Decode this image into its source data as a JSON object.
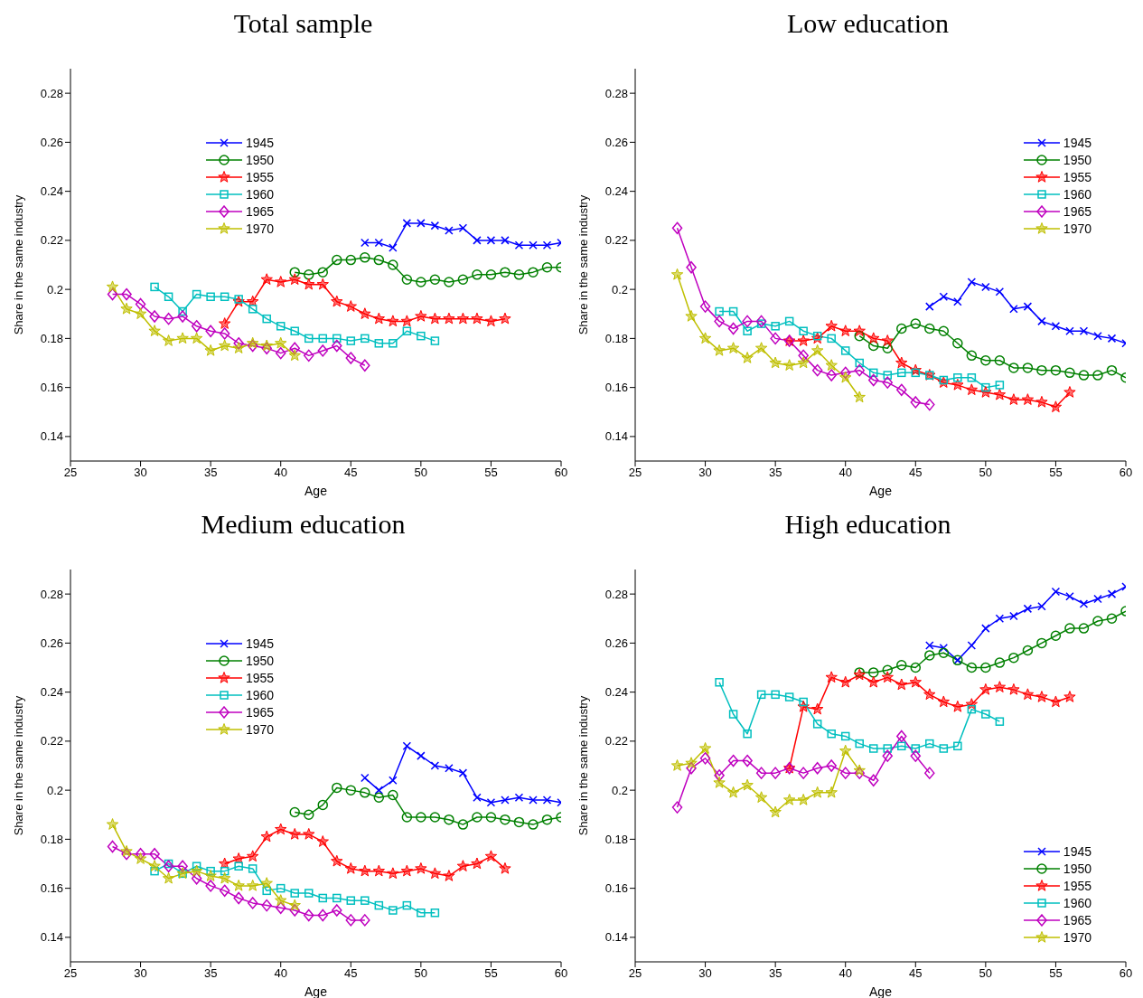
{
  "chart_data": [
    {
      "type": "line",
      "title": "Total sample",
      "xlabel": "Age",
      "ylabel": "Share in the same industry",
      "xlim": [
        25,
        60
      ],
      "xticks": [
        25,
        30,
        35,
        40,
        45,
        50,
        55,
        60
      ],
      "ylim": [
        0.13,
        0.29
      ],
      "yticks": [
        0.14,
        0.16,
        0.18,
        0.2,
        0.22,
        0.24,
        0.26,
        0.28
      ],
      "grid": false,
      "legend": "top left",
      "line_style": "solid",
      "series": [
        {
          "name": "1945",
          "color": "#0000ff",
          "marker": "cross",
          "x": [
            46,
            47,
            48,
            49,
            50,
            51,
            52,
            53,
            54,
            55,
            56,
            57,
            58,
            59,
            60
          ],
          "values": [
            0.219,
            0.219,
            0.217,
            0.227,
            0.227,
            0.226,
            0.224,
            0.225,
            0.22,
            0.22,
            0.22,
            0.218,
            0.218,
            0.218,
            0.219
          ]
        },
        {
          "name": "1950",
          "color": "#008000",
          "marker": "circle",
          "x": [
            41,
            42,
            43,
            44,
            45,
            46,
            47,
            48,
            49,
            50,
            51,
            52,
            53,
            54,
            55,
            56,
            57,
            58,
            59,
            60
          ],
          "values": [
            0.207,
            0.206,
            0.207,
            0.212,
            0.212,
            0.213,
            0.212,
            0.21,
            0.204,
            0.203,
            0.204,
            0.203,
            0.204,
            0.206,
            0.206,
            0.207,
            0.206,
            0.207,
            0.209,
            0.209
          ]
        },
        {
          "name": "1955",
          "color": "#ff0000",
          "marker": "star",
          "x": [
            36,
            37,
            38,
            39,
            40,
            41,
            42,
            43,
            44,
            45,
            46,
            47,
            48,
            49,
            50,
            51,
            52,
            53,
            54,
            55,
            56
          ],
          "values": [
            0.186,
            0.195,
            0.195,
            0.204,
            0.203,
            0.204,
            0.202,
            0.202,
            0.195,
            0.193,
            0.19,
            0.188,
            0.187,
            0.187,
            0.189,
            0.188,
            0.188,
            0.188,
            0.188,
            0.187,
            0.188
          ]
        },
        {
          "name": "1960",
          "color": "#00bfbf",
          "marker": "square",
          "x": [
            31,
            32,
            33,
            34,
            35,
            36,
            37,
            38,
            39,
            40,
            41,
            42,
            43,
            44,
            45,
            46,
            47,
            48,
            49,
            50,
            51
          ],
          "values": [
            0.201,
            0.197,
            0.191,
            0.198,
            0.197,
            0.197,
            0.196,
            0.192,
            0.188,
            0.185,
            0.183,
            0.18,
            0.18,
            0.18,
            0.179,
            0.18,
            0.178,
            0.178,
            0.183,
            0.181,
            0.179
          ]
        },
        {
          "name": "1965",
          "color": "#bf00bf",
          "marker": "diamond",
          "x": [
            28,
            29,
            30,
            31,
            32,
            33,
            34,
            35,
            36,
            37,
            38,
            39,
            40,
            41,
            42,
            43,
            44,
            45,
            46
          ],
          "values": [
            0.198,
            0.198,
            0.194,
            0.189,
            0.188,
            0.189,
            0.185,
            0.183,
            0.182,
            0.178,
            0.177,
            0.176,
            0.174,
            0.176,
            0.173,
            0.175,
            0.177,
            0.172,
            0.169
          ]
        },
        {
          "name": "1970",
          "color": "#bfbf00",
          "marker": "star",
          "x": [
            28,
            29,
            30,
            31,
            32,
            33,
            34,
            35,
            36,
            37,
            38,
            39,
            40,
            41
          ],
          "values": [
            0.201,
            0.192,
            0.19,
            0.183,
            0.179,
            0.18,
            0.18,
            0.175,
            0.177,
            0.176,
            0.178,
            0.177,
            0.178,
            0.173
          ]
        }
      ]
    },
    {
      "type": "line",
      "title": "Low education",
      "xlabel": "Age",
      "ylabel": "Share in the same industry",
      "xlim": [
        25,
        60
      ],
      "xticks": [
        25,
        30,
        35,
        40,
        45,
        50,
        55,
        60
      ],
      "ylim": [
        0.13,
        0.29
      ],
      "yticks": [
        0.14,
        0.16,
        0.18,
        0.2,
        0.22,
        0.24,
        0.26,
        0.28
      ],
      "grid": false,
      "legend": "top right",
      "line_style": "solid",
      "series": [
        {
          "name": "1945",
          "color": "#0000ff",
          "marker": "cross",
          "x": [
            46,
            47,
            48,
            49,
            50,
            51,
            52,
            53,
            54,
            55,
            56,
            57,
            58,
            59,
            60
          ],
          "values": [
            0.193,
            0.197,
            0.195,
            0.203,
            0.201,
            0.199,
            0.192,
            0.193,
            0.187,
            0.185,
            0.183,
            0.183,
            0.181,
            0.18,
            0.178
          ]
        },
        {
          "name": "1950",
          "color": "#008000",
          "marker": "circle",
          "x": [
            41,
            42,
            43,
            44,
            45,
            46,
            47,
            48,
            49,
            50,
            51,
            52,
            53,
            54,
            55,
            56,
            57,
            58,
            59,
            60
          ],
          "values": [
            0.181,
            0.177,
            0.176,
            0.184,
            0.186,
            0.184,
            0.183,
            0.178,
            0.173,
            0.171,
            0.171,
            0.168,
            0.168,
            0.167,
            0.167,
            0.166,
            0.165,
            0.165,
            0.167,
            0.164
          ]
        },
        {
          "name": "1955",
          "color": "#ff0000",
          "marker": "star",
          "x": [
            36,
            37,
            38,
            39,
            40,
            41,
            42,
            43,
            44,
            45,
            46,
            47,
            48,
            49,
            50,
            51,
            52,
            53,
            54,
            55,
            56
          ],
          "values": [
            0.179,
            0.179,
            0.18,
            0.185,
            0.183,
            0.183,
            0.18,
            0.179,
            0.17,
            0.167,
            0.165,
            0.162,
            0.161,
            0.159,
            0.158,
            0.157,
            0.155,
            0.155,
            0.154,
            0.152,
            0.158
          ]
        },
        {
          "name": "1960",
          "color": "#00bfbf",
          "marker": "square",
          "x": [
            31,
            32,
            33,
            34,
            35,
            36,
            37,
            38,
            39,
            40,
            41,
            42,
            43,
            44,
            45,
            46,
            47,
            48,
            49,
            50,
            51
          ],
          "values": [
            0.191,
            0.191,
            0.183,
            0.186,
            0.185,
            0.187,
            0.183,
            0.181,
            0.18,
            0.175,
            0.17,
            0.166,
            0.165,
            0.166,
            0.166,
            0.165,
            0.163,
            0.164,
            0.164,
            0.16,
            0.161
          ]
        },
        {
          "name": "1965",
          "color": "#bf00bf",
          "marker": "diamond",
          "x": [
            28,
            29,
            30,
            31,
            32,
            33,
            34,
            35,
            36,
            37,
            38,
            39,
            40,
            41,
            42,
            43,
            44,
            45,
            46
          ],
          "values": [
            0.225,
            0.209,
            0.193,
            0.187,
            0.184,
            0.187,
            0.187,
            0.18,
            0.179,
            0.173,
            0.167,
            0.165,
            0.166,
            0.167,
            0.163,
            0.162,
            0.159,
            0.154,
            0.153
          ]
        },
        {
          "name": "1970",
          "color": "#bfbf00",
          "marker": "star",
          "x": [
            28,
            29,
            30,
            31,
            32,
            33,
            34,
            35,
            36,
            37,
            38,
            39,
            40,
            41
          ],
          "values": [
            0.206,
            0.189,
            0.18,
            0.175,
            0.176,
            0.172,
            0.176,
            0.17,
            0.169,
            0.17,
            0.175,
            0.169,
            0.164,
            0.156
          ]
        }
      ]
    },
    {
      "type": "line",
      "title": "Medium education",
      "xlabel": "Age",
      "ylabel": "Share in the same industry",
      "xlim": [
        25,
        60
      ],
      "xticks": [
        25,
        30,
        35,
        40,
        45,
        50,
        55,
        60
      ],
      "ylim": [
        0.13,
        0.29
      ],
      "yticks": [
        0.14,
        0.16,
        0.18,
        0.2,
        0.22,
        0.24,
        0.26,
        0.28
      ],
      "grid": false,
      "legend": "top left",
      "line_style": "solid",
      "series": [
        {
          "name": "1945",
          "color": "#0000ff",
          "marker": "cross",
          "x": [
            46,
            47,
            48,
            49,
            50,
            51,
            52,
            53,
            54,
            55,
            56,
            57,
            58,
            59,
            60
          ],
          "values": [
            0.205,
            0.2,
            0.204,
            0.218,
            0.214,
            0.21,
            0.209,
            0.207,
            0.197,
            0.195,
            0.196,
            0.197,
            0.196,
            0.196,
            0.195
          ]
        },
        {
          "name": "1950",
          "color": "#008000",
          "marker": "circle",
          "x": [
            41,
            42,
            43,
            44,
            45,
            46,
            47,
            48,
            49,
            50,
            51,
            52,
            53,
            54,
            55,
            56,
            57,
            58,
            59,
            60
          ],
          "values": [
            0.191,
            0.19,
            0.194,
            0.201,
            0.2,
            0.199,
            0.197,
            0.198,
            0.189,
            0.189,
            0.189,
            0.188,
            0.186,
            0.189,
            0.189,
            0.188,
            0.187,
            0.186,
            0.188,
            0.189
          ]
        },
        {
          "name": "1955",
          "color": "#ff0000",
          "marker": "star",
          "x": [
            36,
            37,
            38,
            39,
            40,
            41,
            42,
            43,
            44,
            45,
            46,
            47,
            48,
            49,
            50,
            51,
            52,
            53,
            54,
            55,
            56
          ],
          "values": [
            0.17,
            0.172,
            0.173,
            0.181,
            0.184,
            0.182,
            0.182,
            0.179,
            0.171,
            0.168,
            0.167,
            0.167,
            0.166,
            0.167,
            0.168,
            0.166,
            0.165,
            0.169,
            0.17,
            0.173,
            0.168
          ]
        },
        {
          "name": "1960",
          "color": "#00bfbf",
          "marker": "square",
          "x": [
            31,
            32,
            33,
            34,
            35,
            36,
            37,
            38,
            39,
            40,
            41,
            42,
            43,
            44,
            45,
            46,
            47,
            48,
            49,
            50,
            51
          ],
          "values": [
            0.167,
            0.17,
            0.166,
            0.169,
            0.167,
            0.167,
            0.169,
            0.168,
            0.159,
            0.16,
            0.158,
            0.158,
            0.156,
            0.156,
            0.155,
            0.155,
            0.153,
            0.151,
            0.153,
            0.15,
            0.15
          ]
        },
        {
          "name": "1965",
          "color": "#bf00bf",
          "marker": "diamond",
          "x": [
            28,
            29,
            30,
            31,
            32,
            33,
            34,
            35,
            36,
            37,
            38,
            39,
            40,
            41,
            42,
            43,
            44,
            45,
            46
          ],
          "values": [
            0.177,
            0.174,
            0.174,
            0.174,
            0.169,
            0.169,
            0.164,
            0.161,
            0.159,
            0.156,
            0.154,
            0.153,
            0.152,
            0.151,
            0.149,
            0.149,
            0.151,
            0.147,
            0.147
          ]
        },
        {
          "name": "1970",
          "color": "#bfbf00",
          "marker": "star",
          "x": [
            28,
            29,
            30,
            31,
            32,
            33,
            34,
            35,
            36,
            37,
            38,
            39,
            40,
            41
          ],
          "values": [
            0.186,
            0.175,
            0.172,
            0.169,
            0.164,
            0.166,
            0.167,
            0.165,
            0.164,
            0.161,
            0.161,
            0.162,
            0.155,
            0.153
          ]
        }
      ]
    },
    {
      "type": "line",
      "title": "High education",
      "xlabel": "Age",
      "ylabel": "Share in the same industry",
      "xlim": [
        25,
        60
      ],
      "xticks": [
        25,
        30,
        35,
        40,
        45,
        50,
        55,
        60
      ],
      "ylim": [
        0.13,
        0.29
      ],
      "yticks": [
        0.14,
        0.16,
        0.18,
        0.2,
        0.22,
        0.24,
        0.26,
        0.28
      ],
      "grid": false,
      "legend": "bottom right",
      "line_style": "solid",
      "series": [
        {
          "name": "1945",
          "color": "#0000ff",
          "marker": "cross",
          "x": [
            46,
            47,
            48,
            49,
            50,
            51,
            52,
            53,
            54,
            55,
            56,
            57,
            58,
            59,
            60
          ],
          "values": [
            0.259,
            0.258,
            0.253,
            0.259,
            0.266,
            0.27,
            0.271,
            0.274,
            0.275,
            0.281,
            0.279,
            0.276,
            0.278,
            0.28,
            0.283
          ]
        },
        {
          "name": "1950",
          "color": "#008000",
          "marker": "circle",
          "x": [
            41,
            42,
            43,
            44,
            45,
            46,
            47,
            48,
            49,
            50,
            51,
            52,
            53,
            54,
            55,
            56,
            57,
            58,
            59,
            60
          ],
          "values": [
            0.248,
            0.248,
            0.249,
            0.251,
            0.25,
            0.255,
            0.256,
            0.253,
            0.25,
            0.25,
            0.252,
            0.254,
            0.257,
            0.26,
            0.263,
            0.266,
            0.266,
            0.269,
            0.27,
            0.273
          ]
        },
        {
          "name": "1955",
          "color": "#ff0000",
          "marker": "star",
          "x": [
            36,
            37,
            38,
            39,
            40,
            41,
            42,
            43,
            44,
            45,
            46,
            47,
            48,
            49,
            50,
            51,
            52,
            53,
            54,
            55,
            56
          ],
          "values": [
            0.209,
            0.234,
            0.233,
            0.246,
            0.244,
            0.247,
            0.244,
            0.246,
            0.243,
            0.244,
            0.239,
            0.236,
            0.234,
            0.235,
            0.241,
            0.242,
            0.241,
            0.239,
            0.238,
            0.236,
            0.238
          ]
        },
        {
          "name": "1960",
          "color": "#00bfbf",
          "marker": "square",
          "x": [
            31,
            32,
            33,
            34,
            35,
            36,
            37,
            38,
            39,
            40,
            41,
            42,
            43,
            44,
            45,
            46,
            47,
            48,
            49,
            50,
            51
          ],
          "values": [
            0.244,
            0.231,
            0.223,
            0.239,
            0.239,
            0.238,
            0.236,
            0.227,
            0.223,
            0.222,
            0.219,
            0.217,
            0.217,
            0.218,
            0.217,
            0.219,
            0.217,
            0.218,
            0.233,
            0.231,
            0.228
          ]
        },
        {
          "name": "1965",
          "color": "#bf00bf",
          "marker": "diamond",
          "x": [
            28,
            29,
            30,
            31,
            32,
            33,
            34,
            35,
            36,
            37,
            38,
            39,
            40,
            41,
            42,
            43,
            44,
            45,
            46
          ],
          "values": [
            0.193,
            0.209,
            0.213,
            0.206,
            0.212,
            0.212,
            0.207,
            0.207,
            0.209,
            0.207,
            0.209,
            0.21,
            0.207,
            0.207,
            0.204,
            0.214,
            0.222,
            0.214,
            0.207
          ]
        },
        {
          "name": "1970",
          "color": "#bfbf00",
          "marker": "star",
          "x": [
            28,
            29,
            30,
            31,
            32,
            33,
            34,
            35,
            36,
            37,
            38,
            39,
            40,
            41
          ],
          "values": [
            0.21,
            0.211,
            0.217,
            0.203,
            0.199,
            0.202,
            0.197,
            0.191,
            0.196,
            0.196,
            0.199,
            0.199,
            0.216,
            0.208
          ]
        }
      ]
    }
  ]
}
